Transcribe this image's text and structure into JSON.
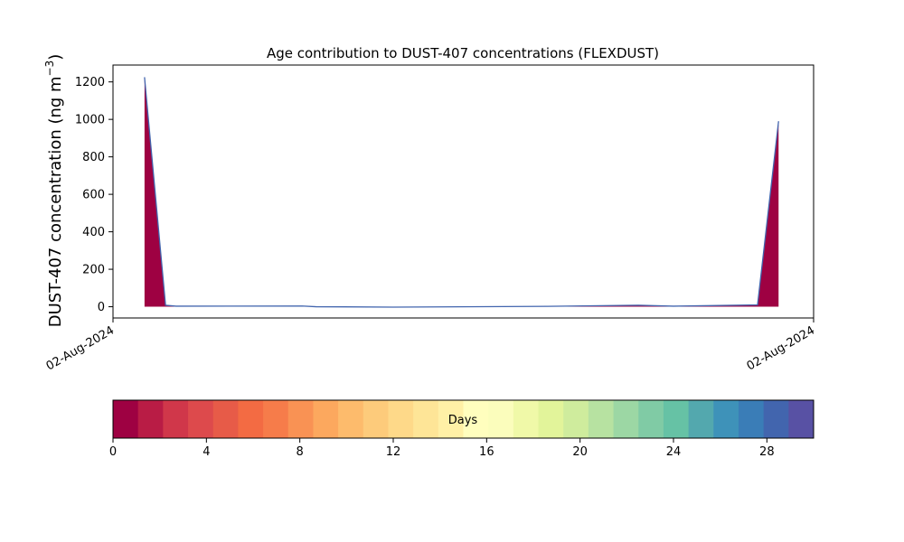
{
  "chart_data": {
    "type": "area",
    "title": "Age contribution to DUST-407 concentrations (FLEXDUST)",
    "ylabel": "DUST-407 concentration (ng m",
    "ylabel_sup": "−3",
    "ylabel_close": ")",
    "ylim": [
      -60,
      1290
    ],
    "yticks": [
      0,
      200,
      400,
      600,
      800,
      1000,
      1200
    ],
    "x": [
      0.045,
      0.075,
      0.09,
      0.27,
      0.29,
      0.4,
      0.62,
      0.75,
      0.8,
      0.92,
      0.95
    ],
    "total": [
      1225,
      8,
      3,
      4,
      0,
      -2,
      2,
      8,
      3,
      10,
      990
    ],
    "xtick_labels": [
      "02-Aug-2024",
      "02-Aug-2024"
    ],
    "colorbar": {
      "label": "Days",
      "ticks": [
        0,
        4,
        8,
        12,
        16,
        20,
        24,
        28
      ],
      "range": [
        0,
        30
      ],
      "colors": [
        "#9e0142",
        "#b91c45",
        "#d0374a",
        "#dd4a4c",
        "#e75b48",
        "#f36b43",
        "#f67c4a",
        "#f99254",
        "#fca85e",
        "#fdbb6c",
        "#fdcb7b",
        "#fed989",
        "#fee597",
        "#fff0a6",
        "#fffebe",
        "#fbfdbc",
        "#f0f9a8",
        "#e2f49a",
        "#cfec9d",
        "#b7e2a1",
        "#9cd7a4",
        "#80cba5",
        "#66c2a5",
        "#53a8ae",
        "#3e92b9",
        "#3a7db7",
        "#4265ae",
        "#5851a4"
      ]
    }
  }
}
